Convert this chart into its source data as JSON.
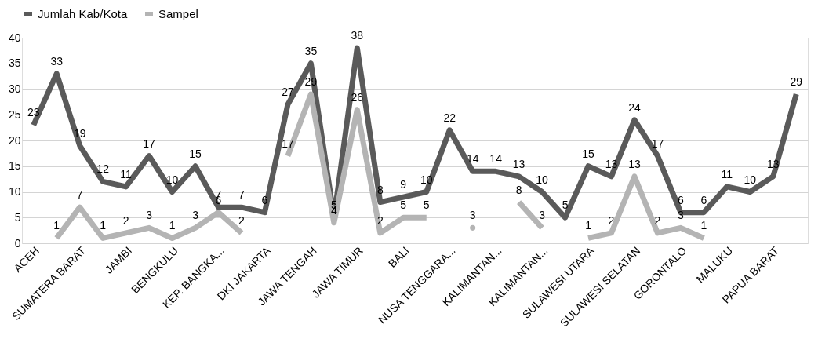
{
  "chart_data": {
    "type": "line",
    "categories": [
      "ACEH",
      null,
      "SUMATERA BARAT",
      null,
      "JAMBI",
      null,
      "BENGKULU",
      null,
      "KEP. BANGKA...",
      null,
      "DKI JAKARTA",
      null,
      "JAWA TENGAH",
      null,
      "JAWA TIMUR",
      null,
      "BALI",
      null,
      "NUSA TENGGARA...",
      null,
      "KALIMANTAN...",
      null,
      "KALIMANTAN...",
      null,
      "SULAWESI UTARA",
      null,
      "SULAWESI SELATAN",
      null,
      "GORONTALO",
      null,
      "MALUKU",
      null,
      "PAPUA BARAT",
      null
    ],
    "series": [
      {
        "name": "Jumlah Kab/Kota",
        "color": "#5a5a5a",
        "values": [
          23,
          33,
          19,
          12,
          11,
          17,
          10,
          15,
          7,
          7,
          6,
          27,
          35,
          5,
          38,
          8,
          9,
          10,
          22,
          14,
          14,
          13,
          10,
          5,
          15,
          13,
          24,
          17,
          6,
          6,
          11,
          10,
          13,
          29
        ]
      },
      {
        "name": "Sampel",
        "color": "#b4b4b4",
        "values": [
          null,
          1,
          7,
          1,
          2,
          3,
          1,
          3,
          6,
          2,
          null,
          17,
          29,
          4,
          26,
          2,
          5,
          5,
          null,
          3,
          null,
          8,
          3,
          null,
          1,
          2,
          13,
          2,
          3,
          1,
          null,
          null,
          null,
          null
        ]
      }
    ],
    "ylim": [
      0,
      40
    ],
    "yticks": [
      0,
      5,
      10,
      15,
      20,
      25,
      30,
      35,
      40
    ],
    "grid": "y",
    "legend": "top",
    "data_labels": true,
    "marker": "none",
    "line_style": "solid"
  }
}
